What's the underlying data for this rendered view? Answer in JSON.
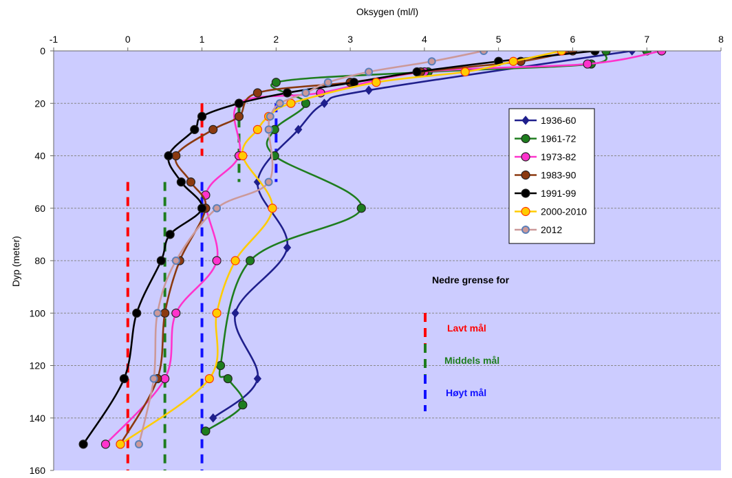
{
  "chart_data": {
    "type": "line",
    "title": "",
    "xlabel": "Oksygen  (ml/l)",
    "ylabel": "Dyp (meter)",
    "xlim": [
      -1,
      8
    ],
    "ylim": [
      0,
      160
    ],
    "y_inverted": true,
    "x_axis_position": "top",
    "x_ticks": [
      "-1",
      "0",
      "1",
      "2",
      "3",
      "4",
      "5",
      "6",
      "7",
      "8"
    ],
    "y_ticks": [
      "0",
      "20",
      "40",
      "60",
      "80",
      "100",
      "120",
      "140",
      "160"
    ],
    "grid": "horizontal dashed",
    "plot_background": "#CCCCFF",
    "legend_placement": "right-middle",
    "series": [
      {
        "name": "1936-60",
        "color": "#1F1F8C",
        "marker": "diamond",
        "points": [
          [
            6.8,
            0
          ],
          [
            3.25,
            15
          ],
          [
            2.65,
            20
          ],
          [
            2.3,
            30
          ],
          [
            1.75,
            50
          ],
          [
            2.15,
            75
          ],
          [
            1.45,
            100
          ],
          [
            1.75,
            125
          ],
          [
            1.15,
            140
          ]
        ]
      },
      {
        "name": "1961-72",
        "color": "#1E7D1E",
        "marker": "circle",
        "points": [
          [
            7.0,
            0
          ],
          [
            6.45,
            0
          ],
          [
            6.25,
            5
          ],
          [
            4.05,
            8
          ],
          [
            2.0,
            12
          ],
          [
            2.4,
            20
          ],
          [
            1.98,
            30
          ],
          [
            1.98,
            40
          ],
          [
            3.15,
            60
          ],
          [
            1.65,
            80
          ],
          [
            1.25,
            120
          ],
          [
            1.35,
            125
          ],
          [
            1.55,
            135
          ],
          [
            1.05,
            145
          ]
        ]
      },
      {
        "name": "1973-82",
        "color": "#FF33CC",
        "marker": "circle",
        "points": [
          [
            7.2,
            0
          ],
          [
            6.2,
            5
          ],
          [
            4.0,
            8
          ],
          [
            2.6,
            16
          ],
          [
            1.5,
            20
          ],
          [
            1.5,
            40
          ],
          [
            1.05,
            55
          ],
          [
            1.2,
            80
          ],
          [
            0.65,
            100
          ],
          [
            0.5,
            125
          ],
          [
            -0.3,
            150
          ]
        ]
      },
      {
        "name": "1983-90",
        "color": "#8B3A10",
        "marker": "circle",
        "points": [
          [
            6.0,
            0
          ],
          [
            5.3,
            4
          ],
          [
            3.95,
            8
          ],
          [
            3.0,
            12
          ],
          [
            1.75,
            16
          ],
          [
            1.5,
            25
          ],
          [
            1.15,
            30
          ],
          [
            0.65,
            40
          ],
          [
            0.85,
            50
          ],
          [
            1.05,
            60
          ],
          [
            0.7,
            80
          ],
          [
            0.5,
            100
          ],
          [
            0.4,
            125
          ],
          [
            -0.1,
            150
          ]
        ]
      },
      {
        "name": "1991-99",
        "color": "#000000",
        "marker": "circle",
        "points": [
          [
            6.3,
            0
          ],
          [
            5.0,
            4
          ],
          [
            3.9,
            8
          ],
          [
            3.05,
            12
          ],
          [
            2.15,
            16
          ],
          [
            1.5,
            20
          ],
          [
            1.0,
            25
          ],
          [
            0.9,
            30
          ],
          [
            0.55,
            40
          ],
          [
            0.72,
            50
          ],
          [
            1.0,
            60
          ],
          [
            0.57,
            70
          ],
          [
            0.45,
            80
          ],
          [
            0.12,
            100
          ],
          [
            -0.05,
            125
          ],
          [
            -0.6,
            150
          ]
        ]
      },
      {
        "name": "2000-2010",
        "color": "#FFCC00",
        "marker": "circle",
        "points": [
          [
            5.85,
            0
          ],
          [
            5.2,
            4
          ],
          [
            4.55,
            8
          ],
          [
            3.35,
            12
          ],
          [
            2.2,
            20
          ],
          [
            1.9,
            25
          ],
          [
            1.75,
            30
          ],
          [
            1.55,
            40
          ],
          [
            1.95,
            60
          ],
          [
            1.45,
            80
          ],
          [
            1.2,
            100
          ],
          [
            1.1,
            125
          ],
          [
            -0.1,
            150
          ]
        ]
      },
      {
        "name": "2012",
        "color": "#CC9999",
        "marker": "circle",
        "points": [
          [
            4.8,
            0
          ],
          [
            4.1,
            4
          ],
          [
            3.25,
            8
          ],
          [
            2.7,
            12
          ],
          [
            2.4,
            16
          ],
          [
            2.05,
            20
          ],
          [
            1.92,
            25
          ],
          [
            1.9,
            30
          ],
          [
            1.9,
            50
          ],
          [
            1.2,
            60
          ],
          [
            0.65,
            80
          ],
          [
            0.4,
            100
          ],
          [
            0.35,
            125
          ],
          [
            0.15,
            150
          ]
        ]
      }
    ],
    "threshold_lines": [
      {
        "color": "#FF0000",
        "segments": [
          [
            1.0,
            20,
            40
          ],
          [
            0.0,
            50,
            160
          ]
        ]
      },
      {
        "color": "#1E7D1E",
        "segments": [
          [
            1.5,
            20,
            50
          ],
          [
            0.5,
            50,
            160
          ]
        ]
      },
      {
        "color": "#1010FF",
        "segments": [
          [
            2.0,
            20,
            50
          ],
          [
            1.0,
            50,
            160
          ]
        ]
      }
    ],
    "annotation": {
      "title": "Nedre grense for",
      "items": [
        {
          "label": "Lavt mål",
          "color": "#FF0000"
        },
        {
          "label": "Middels mål",
          "color": "#1E7D1E"
        },
        {
          "label": "Høyt mål",
          "color": "#1010FF"
        }
      ]
    }
  }
}
